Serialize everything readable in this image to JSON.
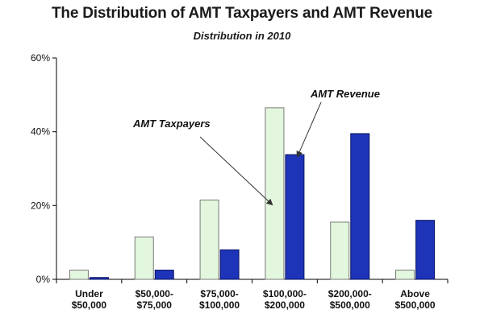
{
  "chart_data": {
    "type": "bar",
    "title": "The Distribution of AMT Taxpayers and AMT Revenue",
    "subtitle": "Distribution in 2010",
    "categories": [
      [
        "Under",
        "$50,000"
      ],
      [
        "$50,000-",
        "$75,000"
      ],
      [
        "$75,000-",
        "$100,000"
      ],
      [
        "$100,000-",
        "$200,000"
      ],
      [
        "$200,000-",
        "$500,000"
      ],
      [
        "Above",
        "$500,000"
      ]
    ],
    "series": [
      {
        "name": "AMT Taxpayers",
        "values": [
          2.5,
          11.5,
          21.5,
          46.5,
          15.5,
          2.5
        ],
        "color": "#e2f7dd",
        "border": "#7a7a7a"
      },
      {
        "name": "AMT Revenue",
        "values": [
          0.5,
          2.5,
          8.0,
          33.8,
          39.5,
          16.0
        ],
        "color": "#1d33b8",
        "border": "#0a1660"
      }
    ],
    "ylim": [
      0,
      60
    ],
    "yticks": [
      0,
      20,
      40,
      60
    ],
    "ytick_labels": [
      "0%",
      "20%",
      "40%",
      "60%"
    ],
    "xlabel": "",
    "ylabel": "",
    "grid": false,
    "legend": "none",
    "annotations": [
      {
        "text": "AMT Taxpayers",
        "series": 0,
        "category": 3
      },
      {
        "text": "AMT Revenue",
        "series": 1,
        "category": 3
      }
    ]
  }
}
